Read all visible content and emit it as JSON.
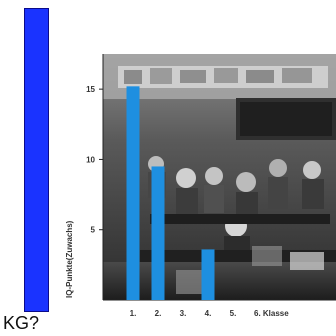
{
  "left_panel": {
    "label": "KG?",
    "bar_color": "#1a33ff"
  },
  "chart_data": {
    "type": "bar",
    "categories": [
      "1.",
      "2.",
      "3.",
      "4.",
      "5.",
      "6. Klasse"
    ],
    "values": [
      15.2,
      9.5,
      0,
      3.6,
      0,
      0
    ],
    "ylabel": "IQ-Punkte(Zuwachs)",
    "yticks": [
      5,
      10,
      15
    ],
    "ylim": [
      0,
      17.5
    ],
    "grid": false,
    "bar_color": "#1e8fe0",
    "background": "black-and-white classroom photograph"
  }
}
